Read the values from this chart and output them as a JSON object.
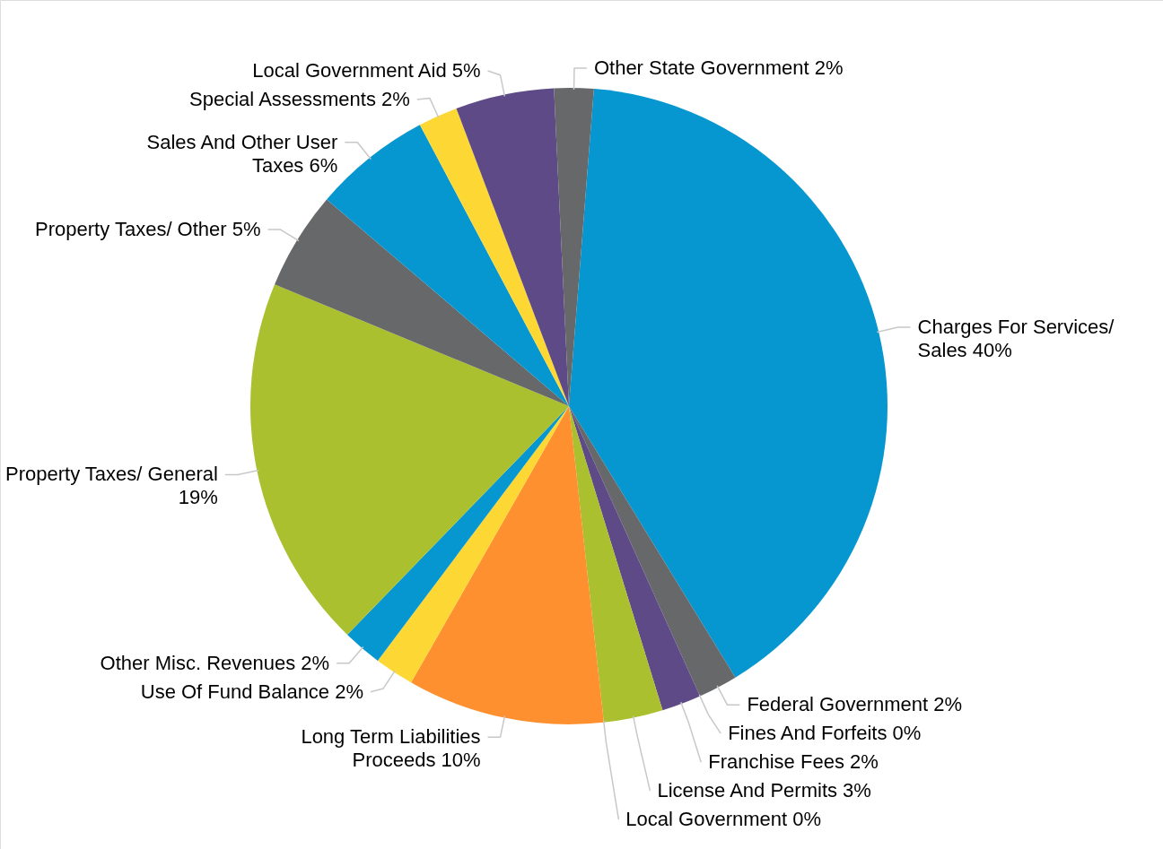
{
  "chart_data": {
    "type": "pie",
    "categories": [
      "Charges For Services/ Sales",
      "Federal Government",
      "Fines And Forfeits",
      "Franchise Fees",
      "License And Permits",
      "Local Government",
      "Long Term Liabilities Proceeds",
      "Use Of Fund Balance",
      "Other Misc. Revenues",
      "Property Taxes/ General",
      "Property Taxes/ Other",
      "Sales And Other User Taxes",
      "Special Assessments",
      "Local Government Aid",
      "Other State Government"
    ],
    "values": [
      40,
      2,
      0,
      2,
      3,
      0,
      10,
      2,
      2,
      19,
      5,
      6,
      2,
      5,
      2
    ],
    "value_labels": [
      "40%",
      "2%",
      "0%",
      "2%",
      "3%",
      "0%",
      "10%",
      "2%",
      "2%",
      "19%",
      "5%",
      "6%",
      "2%",
      "5%",
      "2%"
    ],
    "colors": [
      "#0696d0",
      "#66686a",
      "#fdd835",
      "#5e4a87",
      "#abc02e",
      "#66686a",
      "#ff902f",
      "#fdd835",
      "#0696d0",
      "#abc02e",
      "#66686a",
      "#0696d0",
      "#fdd835",
      "#5e4a87",
      "#66686a"
    ]
  }
}
